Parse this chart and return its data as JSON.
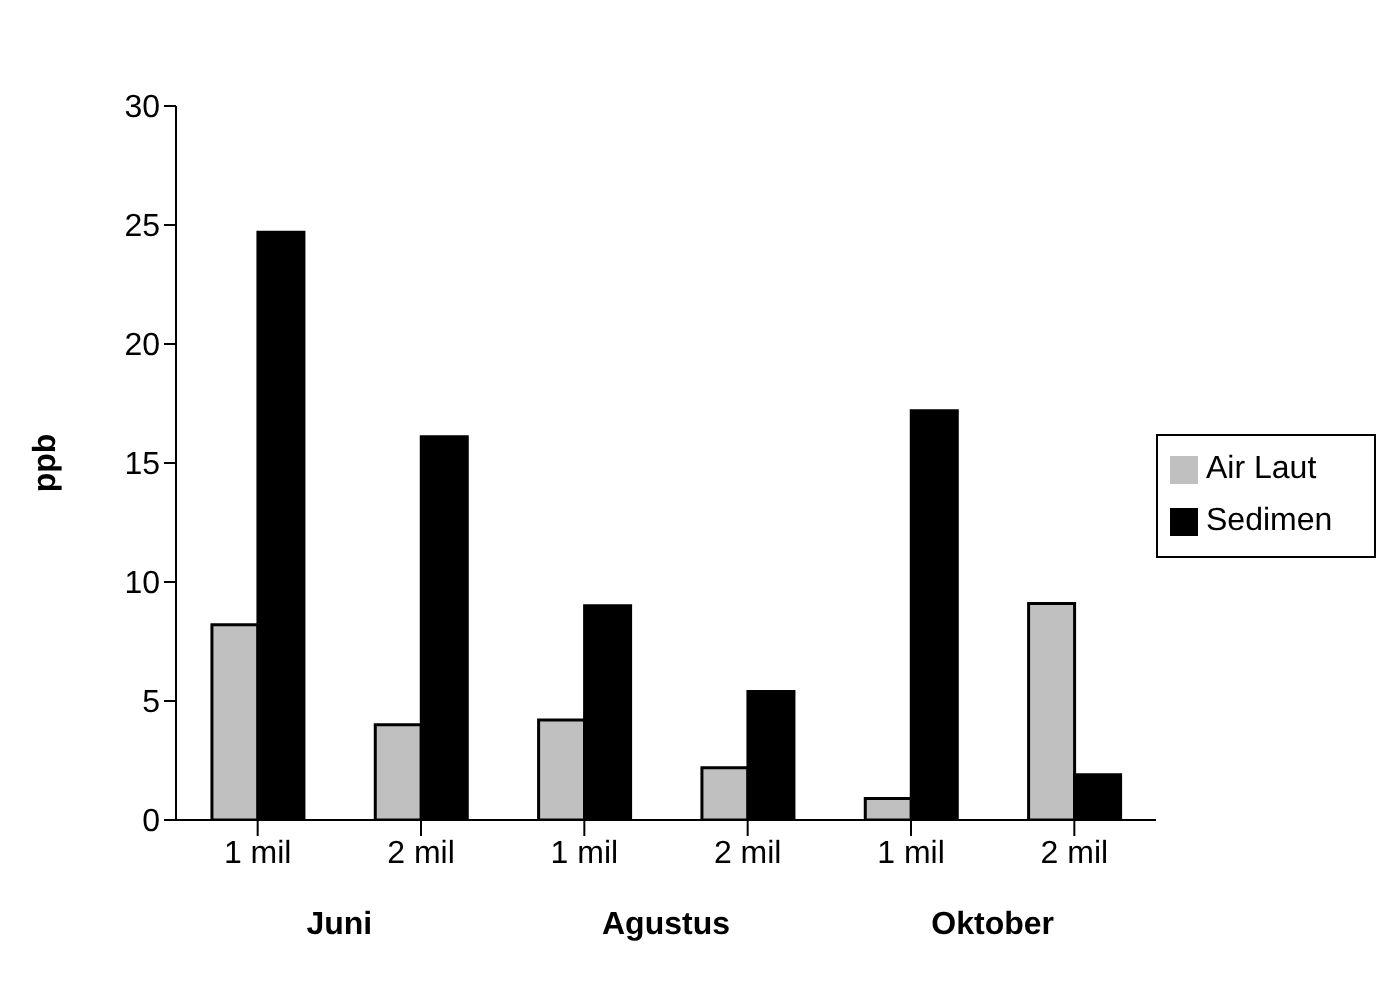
{
  "chart_data": {
    "type": "bar",
    "ylabel": "ppb",
    "categories": [
      "1 mil",
      "2 mil",
      "1 mil",
      "2 mil",
      "1 mil",
      "2 mil"
    ],
    "series": [
      {
        "name": "Air Laut",
        "color": "#c0c0c0",
        "values": [
          8.2,
          4.0,
          4.2,
          2.2,
          0.9,
          9.1
        ]
      },
      {
        "name": "Sedimen",
        "color": "#000000",
        "values": [
          24.7,
          16.1,
          9.0,
          5.4,
          17.2,
          1.9
        ]
      }
    ],
    "annotations": [
      "Juni",
      "Agustus",
      "Oktober"
    ],
    "ylim": [
      0,
      30
    ],
    "yticks": [
      0,
      5,
      10,
      15,
      20,
      25,
      30
    ],
    "grid": false,
    "legend": "right"
  }
}
